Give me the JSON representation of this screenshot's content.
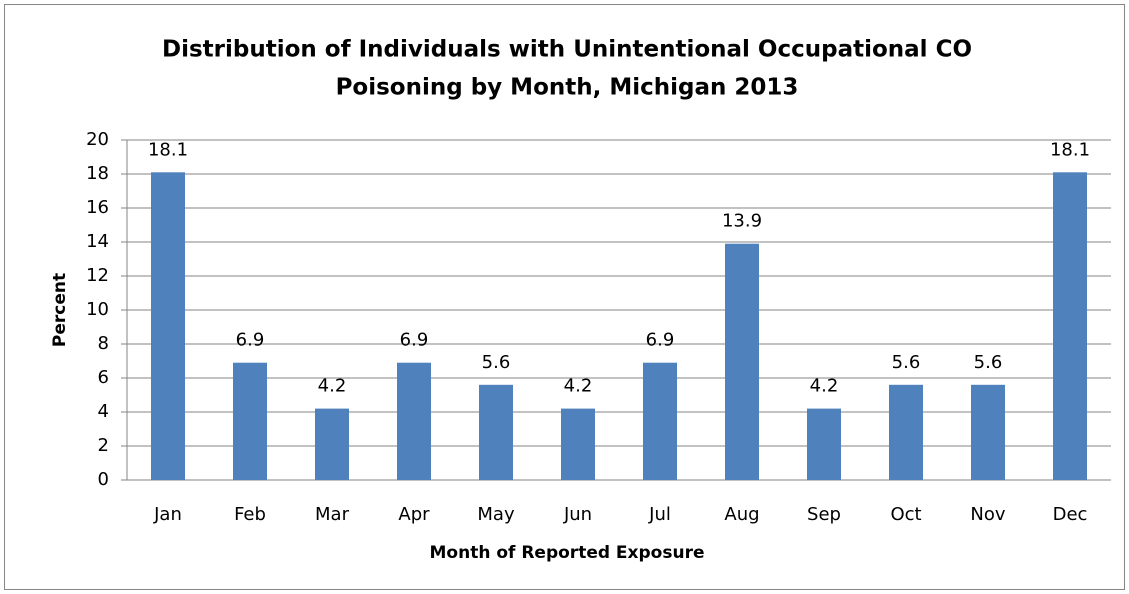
{
  "chart_data": {
    "type": "bar",
    "title": [
      "Distribution of Individuals with Unintentional Occupational CO",
      "Poisoning by Month, Michigan 2013"
    ],
    "x_label": "Month of Reported Exposure",
    "y_label": "Percent",
    "categories": [
      "Jan",
      "Feb",
      "Mar",
      "Apr",
      "May",
      "Jun",
      "Jul",
      "Aug",
      "Sep",
      "Oct",
      "Nov",
      "Dec"
    ],
    "values": [
      18.1,
      6.9,
      4.2,
      6.9,
      5.6,
      4.2,
      6.9,
      13.9,
      4.2,
      5.6,
      5.6,
      18.1
    ],
    "color": "#4f81bd",
    "ylim": [
      0,
      20
    ],
    "yticks": [
      0,
      2,
      4,
      6,
      8,
      10,
      12,
      14,
      16,
      18,
      20
    ],
    "grid": true
  }
}
